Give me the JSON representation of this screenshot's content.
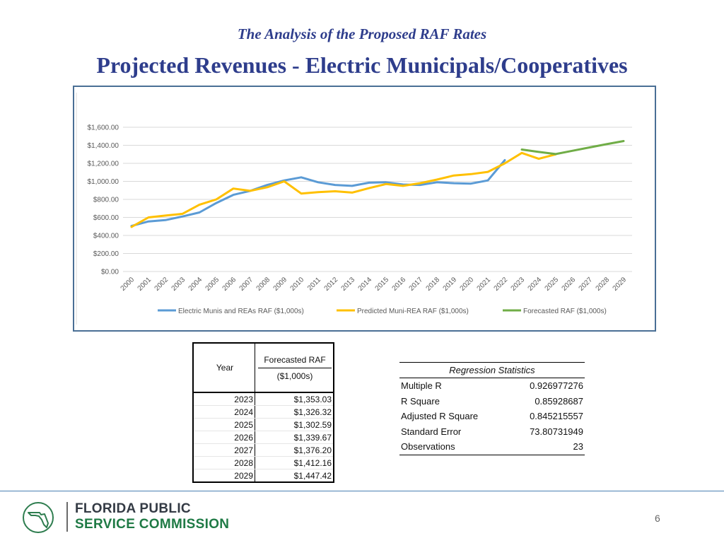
{
  "header": {
    "subtitle": "The Analysis of the Proposed RAF Rates",
    "title": "Projected Revenues - Electric Municipals/Cooperatives"
  },
  "chart_data": {
    "type": "line",
    "title": "",
    "xlabel": "",
    "ylabel": "",
    "ylim": [
      0,
      1600
    ],
    "yticks": [
      0,
      200,
      400,
      600,
      800,
      1000,
      1200,
      1400,
      1600
    ],
    "ytick_labels": [
      "$0.00",
      "$200.00",
      "$400.00",
      "$600.00",
      "$800.00",
      "$1,000.00",
      "$1,200.00",
      "$1,400.00",
      "$1,600.00"
    ],
    "categories": [
      "2000",
      "2001",
      "2002",
      "2003",
      "2004",
      "2005",
      "2006",
      "2007",
      "2008",
      "2009",
      "2010",
      "2011",
      "2012",
      "2013",
      "2014",
      "2015",
      "2016",
      "2017",
      "2018",
      "2019",
      "2020",
      "2021",
      "2022",
      "2023",
      "2024",
      "2025",
      "2026",
      "2027",
      "2028",
      "2029"
    ],
    "legend_position": "bottom",
    "series": [
      {
        "name": "Electric Munis and REAs RAF ($1,000s)",
        "color": "#5b9bd5",
        "values": [
          505,
          555,
          570,
          610,
          655,
          760,
          850,
          895,
          960,
          1010,
          1045,
          990,
          960,
          950,
          985,
          990,
          965,
          960,
          990,
          980,
          975,
          1010,
          1235,
          null,
          null,
          null,
          null,
          null,
          null,
          null
        ]
      },
      {
        "name": "Predicted Muni-REA RAF ($1,000s)",
        "color": "#ffc000",
        "values": [
          495,
          600,
          620,
          640,
          740,
          800,
          920,
          895,
          935,
          1000,
          865,
          880,
          890,
          875,
          925,
          970,
          950,
          980,
          1020,
          1065,
          1080,
          1105,
          1200,
          1315,
          1250,
          1300,
          null,
          null,
          null,
          null
        ]
      },
      {
        "name": "Forecasted RAF ($1,000s)",
        "color": "#70ad47",
        "values": [
          null,
          null,
          null,
          null,
          null,
          null,
          null,
          null,
          null,
          null,
          null,
          null,
          null,
          null,
          null,
          null,
          null,
          null,
          null,
          null,
          null,
          null,
          null,
          1353.03,
          1326.32,
          1302.59,
          1339.67,
          1376.2,
          1412.16,
          1447.42
        ]
      }
    ]
  },
  "forecast_table": {
    "col_year": "Year",
    "col_raf_line1": "Forecasted RAF",
    "col_raf_line2": "($1,000s)",
    "rows": [
      {
        "year": "2023",
        "value": "$1,353.03"
      },
      {
        "year": "2024",
        "value": "$1,326.32"
      },
      {
        "year": "2025",
        "value": "$1,302.59"
      },
      {
        "year": "2026",
        "value": "$1,339.67"
      },
      {
        "year": "2027",
        "value": "$1,376.20"
      },
      {
        "year": "2028",
        "value": "$1,412.16"
      },
      {
        "year": "2029",
        "value": "$1,447.42"
      }
    ]
  },
  "regression": {
    "caption": "Regression Statistics",
    "rows": [
      {
        "label": "Multiple R",
        "value": "0.926977276"
      },
      {
        "label": "R Square",
        "value": "0.85928687"
      },
      {
        "label": "Adjusted R Square",
        "value": "0.845215557"
      },
      {
        "label": "Standard Error",
        "value": "73.80731949"
      },
      {
        "label": "Observations",
        "value": "23"
      }
    ]
  },
  "footer": {
    "org_line1": "FLORIDA PUBLIC",
    "org_line2": "SERVICE COMMISSION",
    "page_number": "6"
  }
}
